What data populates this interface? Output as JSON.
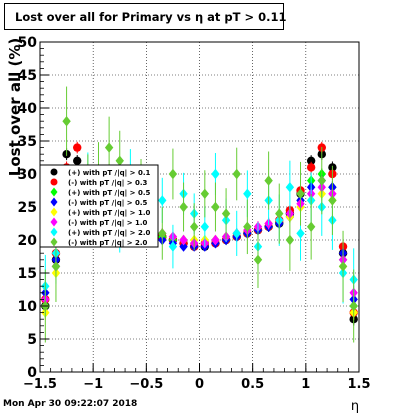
{
  "title": "Lost over all for Primary vs  η at pT > 0.11",
  "footer": "Mon Apr 30 09:22:07 2018",
  "colors": {
    "series": [
      "#000000",
      "#ff0000",
      "#00ff00",
      "#0000ff",
      "#ffff00",
      "#ff00ff",
      "#00ffff",
      "#66cc33"
    ]
  },
  "chart_data": {
    "type": "scatter",
    "title": "Lost over all for Primary vs  η at pT > 0.11",
    "xlabel": "η",
    "ylabel": "Lost over all (%)",
    "xlim": [
      -1.5,
      1.5
    ],
    "ylim": [
      0,
      50
    ],
    "grid": true,
    "legend": "left",
    "x_ticks": [
      "−1.5",
      "−1",
      "−0.5",
      "0",
      "0.5",
      "1",
      "1.5"
    ],
    "y_ticks": [
      "0",
      "5",
      "10",
      "15",
      "20",
      "25",
      "30",
      "35",
      "40",
      "45",
      "50"
    ],
    "series": [
      {
        "name": "with pT /|q| > 0.1",
        "x": [
          -1.45,
          -1.35,
          -1.25,
          -1.15,
          -1.05,
          -0.95,
          -0.85,
          -0.75,
          -0.65,
          -0.55,
          -0.45,
          -0.35,
          -0.25,
          -0.15,
          -0.05,
          0.05,
          0.15,
          0.25,
          0.35,
          0.45,
          0.55,
          0.65,
          0.75,
          0.85,
          0.95,
          1.05,
          1.15,
          1.25,
          1.35,
          1.45
        ],
        "y": [
          10,
          17,
          33,
          32,
          27,
          25,
          24,
          24,
          22,
          21.5,
          21,
          20.5,
          20,
          19.5,
          19,
          19,
          19.5,
          20,
          20.5,
          21,
          21.5,
          22,
          22.5,
          24,
          27,
          32,
          33,
          31,
          18,
          8
        ]
      },
      {
        "name": "with pT /|q| > 0.3",
        "x": [
          -1.45,
          -1.35,
          -1.25,
          -1.15,
          -1.05,
          -0.95,
          -0.85,
          -0.75,
          -0.65,
          -0.55,
          -0.45,
          -0.35,
          -0.25,
          -0.15,
          -0.05,
          0.05,
          0.15,
          0.25,
          0.35,
          0.45,
          0.55,
          0.65,
          0.75,
          0.85,
          0.95,
          1.05,
          1.15,
          1.25,
          1.35,
          1.45
        ],
        "y": [
          11,
          18,
          31,
          34,
          28,
          25.5,
          24,
          23.5,
          22,
          21.5,
          21,
          20.5,
          20,
          19.5,
          19,
          19.5,
          19.5,
          20,
          20.5,
          21,
          21.5,
          22,
          23,
          24.5,
          27.5,
          31,
          34,
          30,
          19,
          9
        ]
      },
      {
        "name": "with pT /|q| > 0.5",
        "x": [
          -1.45,
          -1.35,
          -1.25,
          -1.15,
          -1.05,
          -0.95,
          -0.85,
          -0.75,
          -0.65,
          -0.55,
          -0.45,
          -0.35,
          -0.25,
          -0.15,
          -0.05,
          0.05,
          0.15,
          0.25,
          0.35,
          0.45,
          0.55,
          0.65,
          0.75,
          0.85,
          0.95,
          1.05,
          1.15,
          1.25,
          1.35,
          1.45
        ],
        "y": [
          10,
          16,
          30,
          29,
          26,
          25,
          24,
          23,
          22,
          21.5,
          21,
          20.5,
          20,
          20,
          19.5,
          19.5,
          20,
          20,
          20.5,
          21,
          21.5,
          22,
          22.5,
          23.5,
          26,
          29,
          30,
          28,
          17,
          10
        ]
      },
      {
        "name": "with pT /|q| > 0.5",
        "x": [
          -1.45,
          -1.35,
          -1.25,
          -1.15,
          -1.05,
          -0.95,
          -0.85,
          -0.75,
          -0.65,
          -0.55,
          -0.45,
          -0.35,
          -0.25,
          -0.15,
          -0.05,
          0.05,
          0.15,
          0.25,
          0.35,
          0.45,
          0.55,
          0.65,
          0.75,
          0.85,
          0.95,
          1.05,
          1.15,
          1.25,
          1.35,
          1.45
        ],
        "y": [
          12,
          17,
          29,
          28,
          26,
          25,
          24,
          23,
          22,
          21,
          20.5,
          20,
          19.5,
          19,
          19,
          19,
          19.5,
          20,
          20.5,
          21,
          21.5,
          22,
          22.5,
          23.5,
          26,
          28,
          29,
          28,
          18,
          11
        ]
      },
      {
        "name": "with pT /|q| > 1.0",
        "x": [
          -1.45,
          -1.35,
          -1.25,
          -1.15,
          -1.05,
          -0.95,
          -0.85,
          -0.75,
          -0.65,
          -0.55,
          -0.45,
          -0.35,
          -0.25,
          -0.15,
          -0.05,
          0.05,
          0.15,
          0.25,
          0.35,
          0.45,
          0.55,
          0.65,
          0.75,
          0.85,
          0.95,
          1.05,
          1.15,
          1.25,
          1.35,
          1.45
        ],
        "y": [
          9,
          15,
          27,
          26,
          25,
          24,
          23.5,
          23,
          22.5,
          22,
          21.5,
          21,
          20.5,
          20,
          20,
          20,
          20,
          20.5,
          21,
          21.5,
          22,
          22.5,
          23,
          23.5,
          25,
          26,
          27,
          26,
          16,
          9
        ]
      },
      {
        "name": "with pT /|q| > 1.0",
        "x": [
          -1.45,
          -1.35,
          -1.25,
          -1.15,
          -1.05,
          -0.95,
          -0.85,
          -0.75,
          -0.65,
          -0.55,
          -0.45,
          -0.35,
          -0.25,
          -0.15,
          -0.05,
          0.05,
          0.15,
          0.25,
          0.35,
          0.45,
          0.55,
          0.65,
          0.75,
          0.85,
          0.95,
          1.05,
          1.15,
          1.25,
          1.35,
          1.45
        ],
        "y": [
          11,
          16,
          28,
          27,
          26,
          25,
          24,
          23,
          22.5,
          22,
          21.5,
          21,
          20.5,
          20,
          19.5,
          19.5,
          20,
          20.5,
          21,
          21.5,
          22,
          22.5,
          23,
          24,
          25.5,
          27,
          28,
          27,
          17,
          12
        ]
      },
      {
        "name": "with pT /|q| > 2.0",
        "x": [
          -1.45,
          -1.35,
          -1.25,
          -1.15,
          -1.05,
          -0.95,
          -0.85,
          -0.75,
          -0.65,
          -0.55,
          -0.45,
          -0.35,
          -0.25,
          -0.15,
          -0.05,
          0.05,
          0.15,
          0.25,
          0.35,
          0.45,
          0.55,
          0.65,
          0.75,
          0.85,
          0.95,
          1.05,
          1.15,
          1.25,
          1.35,
          1.45
        ],
        "y": [
          13,
          18,
          26,
          27,
          29,
          27,
          26,
          22,
          30,
          25,
          23,
          26,
          19,
          27,
          24,
          22,
          30,
          23,
          21,
          27,
          19,
          26,
          23,
          28,
          21,
          26,
          25,
          23,
          15,
          14
        ]
      },
      {
        "name": "with pT /|q| > 2.0",
        "x": [
          -1.45,
          -1.35,
          -1.25,
          -1.15,
          -1.05,
          -0.95,
          -0.85,
          -0.75,
          -0.65,
          -0.55,
          -0.45,
          -0.35,
          -0.25,
          -0.15,
          -0.05,
          0.05,
          0.15,
          0.25,
          0.35,
          0.45,
          0.55,
          0.65,
          0.75,
          0.85,
          0.95,
          1.05,
          1.15,
          1.25,
          1.35,
          1.45
        ],
        "y": [
          10,
          16,
          38,
          24,
          28,
          30,
          34,
          32,
          24,
          28,
          26,
          21,
          30,
          25,
          22,
          27,
          25,
          24,
          30,
          22,
          17,
          29,
          24,
          20,
          27,
          22,
          29,
          26,
          16,
          10
        ]
      }
    ]
  }
}
